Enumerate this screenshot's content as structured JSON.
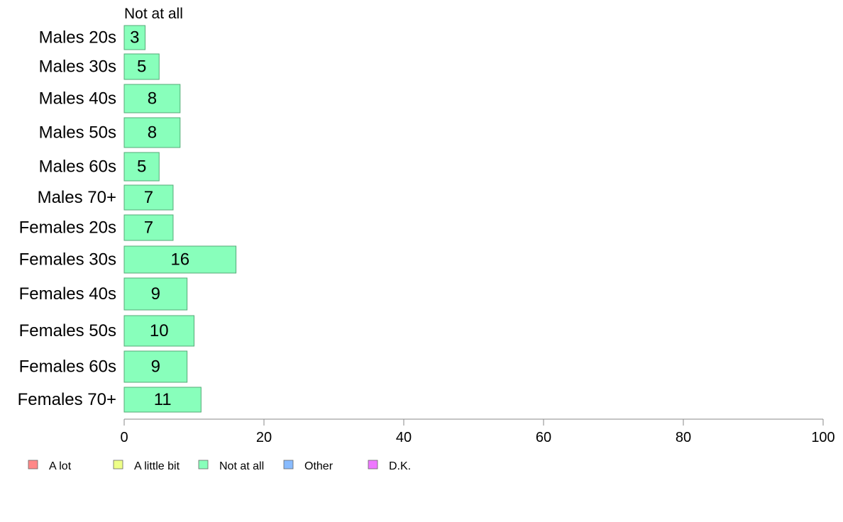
{
  "chart_data": {
    "type": "bar",
    "orientation": "horizontal",
    "stacked": true,
    "visible_series_label": "Not at all",
    "categories": [
      "Males 20s",
      "Males 30s",
      "Males 40s",
      "Males 50s",
      "Males 60s",
      "Males 70+",
      "Females 20s",
      "Females 30s",
      "Females 40s",
      "Females 50s",
      "Females 60s",
      "Females 70+"
    ],
    "series": [
      {
        "name": "Not at all",
        "color": "#88ffbb",
        "values": [
          3,
          5,
          8,
          8,
          5,
          7,
          7,
          16,
          9,
          10,
          9,
          11
        ]
      }
    ],
    "xlim": [
      0,
      100
    ],
    "xticks": [
      0,
      20,
      40,
      60,
      80,
      100
    ],
    "grid": false,
    "legend_position": "bottom",
    "legend": [
      {
        "label": "A lot",
        "color": "#ff8888"
      },
      {
        "label": "A little bit",
        "color": "#eeff88"
      },
      {
        "label": "Not at all",
        "color": "#88ffbb"
      },
      {
        "label": "Other",
        "color": "#88bbff"
      },
      {
        "label": "D.K.",
        "color": "#ee77ff"
      }
    ]
  }
}
